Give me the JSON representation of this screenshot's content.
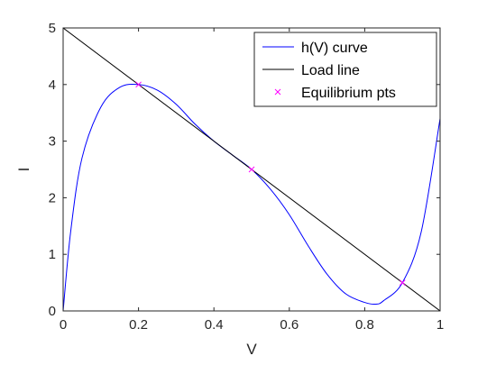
{
  "chart_data": {
    "type": "line",
    "title": "",
    "xlabel": "V",
    "ylabel": "I",
    "xlim": [
      0,
      1
    ],
    "ylim": [
      0,
      5
    ],
    "xticks": [
      "0",
      "0.2",
      "0.4",
      "0.6",
      "0.8",
      "1"
    ],
    "yticks": [
      "0",
      "1",
      "2",
      "3",
      "4",
      "5"
    ],
    "grid": false,
    "legend_position": "top-right",
    "series": [
      {
        "name": "h(V) curve",
        "type": "line",
        "color": "#0000ff",
        "x": [
          0,
          0.02,
          0.05,
          0.1,
          0.15,
          0.2,
          0.25,
          0.3,
          0.35,
          0.4,
          0.45,
          0.5,
          0.55,
          0.6,
          0.65,
          0.7,
          0.75,
          0.8,
          0.83,
          0.85,
          0.9,
          0.95,
          1.0
        ],
        "y": [
          0,
          1.4,
          2.7,
          3.6,
          3.95,
          4.0,
          3.9,
          3.65,
          3.3,
          3.0,
          2.75,
          2.5,
          2.15,
          1.7,
          1.15,
          0.65,
          0.3,
          0.15,
          0.12,
          0.18,
          0.5,
          1.4,
          3.4
        ]
      },
      {
        "name": "Load line",
        "type": "line",
        "color": "#000000",
        "x": [
          0,
          1
        ],
        "y": [
          5,
          0
        ]
      },
      {
        "name": "Equilibrium pts",
        "type": "scatter",
        "marker": "x",
        "color": "#ff00ff",
        "x": [
          0.2,
          0.5,
          0.9
        ],
        "y": [
          4.0,
          2.5,
          0.5
        ]
      }
    ]
  }
}
